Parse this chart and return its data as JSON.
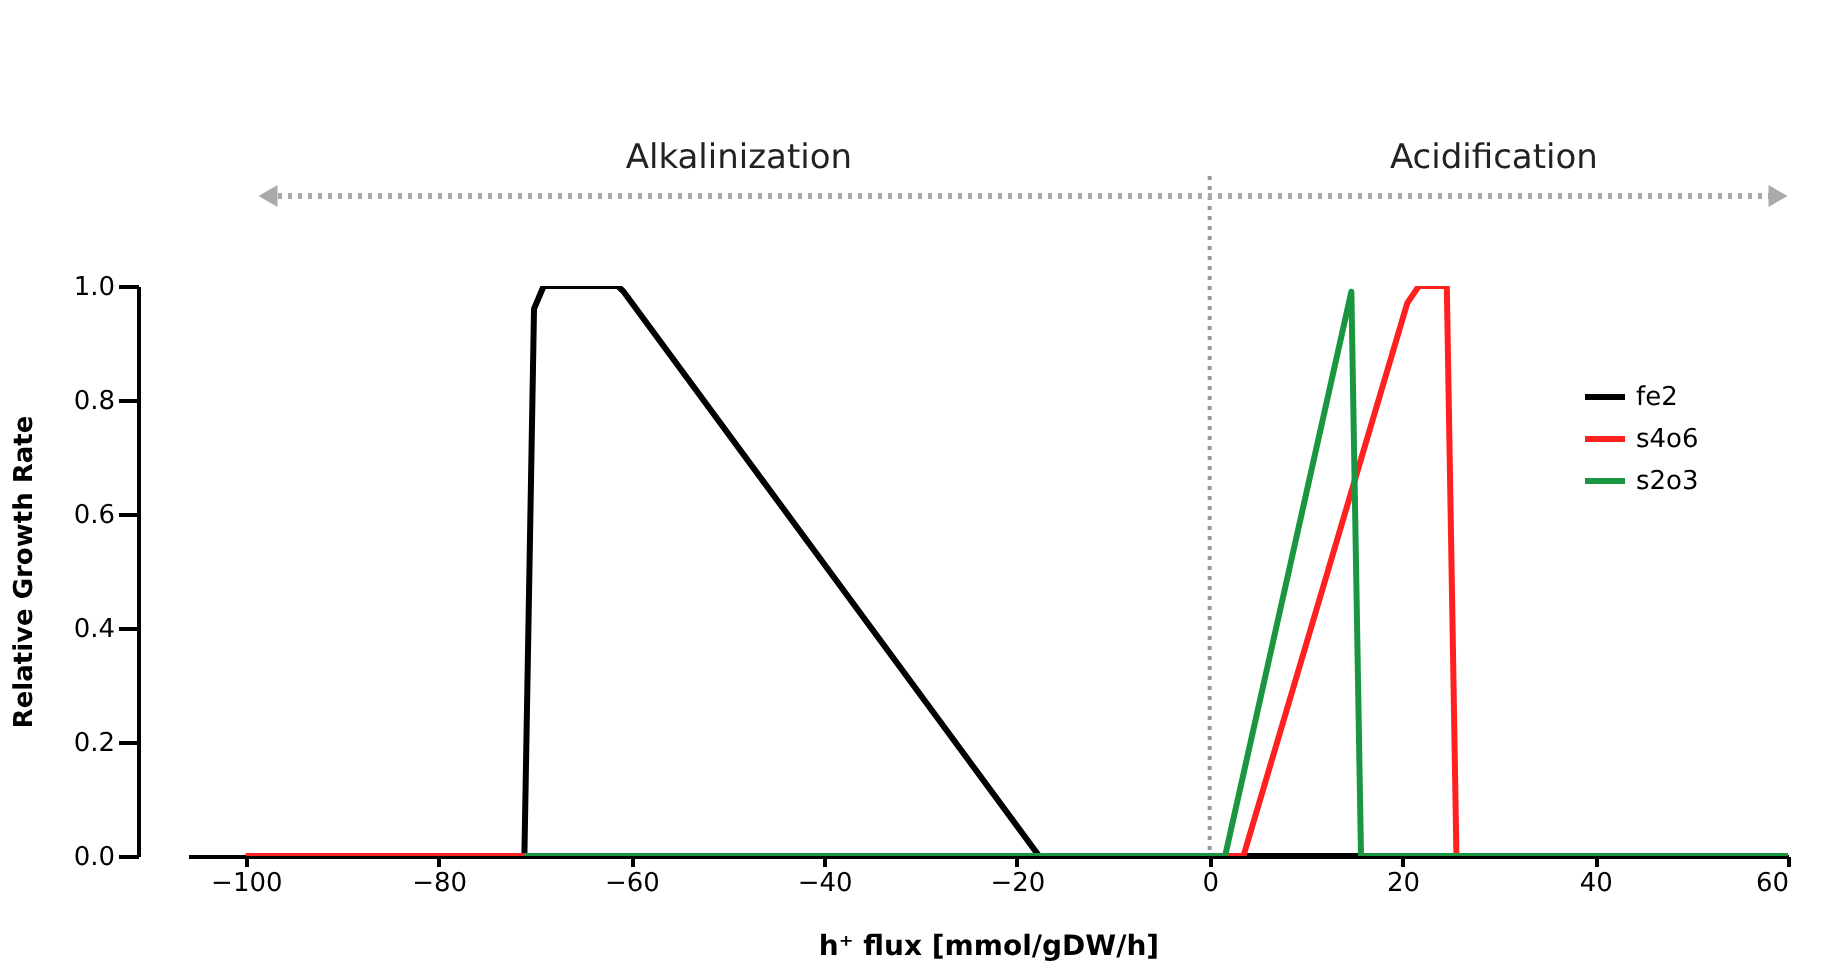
{
  "chart_data": {
    "type": "line",
    "xlabel": "h⁺ flux [mmol/gDW/h]",
    "ylabel": "Relative Growth Rate",
    "series": [
      {
        "name": "fe2",
        "color": "#000000",
        "x": [
          -100,
          -71.1,
          -70.1,
          -69.1,
          -61.4,
          -60.8,
          -17.7,
          60
        ],
        "values": [
          0,
          0,
          0.96,
          1.0,
          1.0,
          0.99,
          0,
          0
        ]
      },
      {
        "name": "s4o6",
        "color": "#ff2020",
        "x": [
          -100,
          3.5,
          20.5,
          21.7,
          24.6,
          25.6,
          60
        ],
        "values": [
          0,
          0,
          0.97,
          1.0,
          1.0,
          0,
          0
        ]
      },
      {
        "name": "s2o3",
        "color": "#1a9641",
        "x": [
          -71.1,
          1.6,
          14.7,
          15.7,
          60
        ],
        "values": [
          0,
          0,
          0.99,
          0,
          0
        ]
      }
    ],
    "xlim": [
      -106,
      60
    ],
    "ylim": [
      0,
      1.0
    ],
    "xticks": [
      -100,
      -80,
      -60,
      -40,
      -20,
      0,
      20,
      40,
      60
    ],
    "yticks": [
      {
        "value": 0,
        "label": "0.0"
      },
      {
        "value": 0.2,
        "label": "0.2"
      },
      {
        "value": 0.4,
        "label": "0.4"
      },
      {
        "value": 0.6,
        "label": "0.6"
      },
      {
        "value": 0.8,
        "label": "0.8"
      },
      {
        "value": 1.0,
        "label": "1.0"
      }
    ],
    "ref_lines": [
      {
        "axis": "x",
        "value": 0,
        "color": "#999999",
        "line_style": "dotted"
      }
    ],
    "annotations": [
      "Alkalinization",
      "Acidification"
    ],
    "legend": "top right",
    "grid": false,
    "marker": "none",
    "line_style": "solid"
  }
}
